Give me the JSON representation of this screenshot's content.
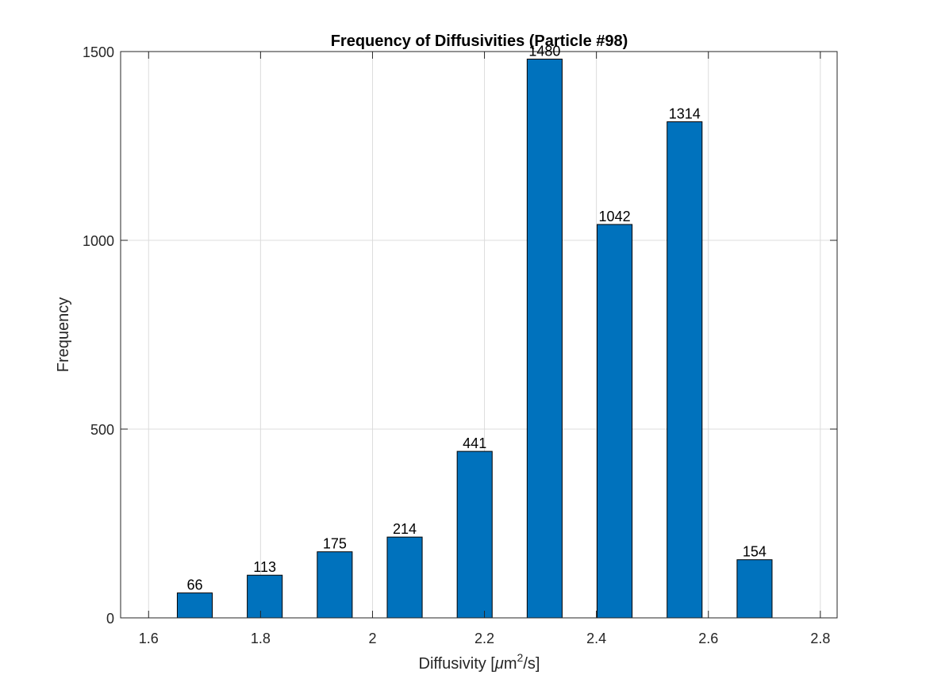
{
  "chart_data": {
    "type": "bar",
    "title": "Frequency of Diffusivities (Particle #98)",
    "xlabel": {
      "prefix": "Diffusivity [",
      "mu": "μ",
      "unit": "m",
      "sup": "2",
      "suffix": "/s]"
    },
    "ylabel": "Frequency",
    "xlim": [
      1.55,
      2.83
    ],
    "ylim": [
      0,
      1500
    ],
    "x": [
      1.6825,
      1.8075,
      1.9325,
      2.0575,
      2.1825,
      2.3075,
      2.4325,
      2.5575,
      2.6825
    ],
    "values": [
      66,
      113,
      175,
      214,
      441,
      1480,
      1042,
      1314,
      154
    ],
    "data_labels": [
      "66",
      "113",
      "175",
      "214",
      "441",
      "1480",
      "1042",
      "1314",
      "154"
    ],
    "bar_width": 0.0625,
    "xticks": [
      1.6,
      1.8,
      2.0,
      2.2,
      2.4,
      2.6,
      2.8
    ],
    "xtick_labels": [
      "1.6",
      "1.8",
      "2",
      "2.2",
      "2.4",
      "2.6",
      "2.8"
    ],
    "yticks": [
      0,
      500,
      1000,
      1500
    ],
    "ytick_labels": [
      "0",
      "500",
      "1000",
      "1500"
    ],
    "grid": true,
    "colors": {
      "bar": "#0072BD",
      "bar_edge": "#000000",
      "grid": "#dcdcdc",
      "axis": "#262626"
    }
  }
}
